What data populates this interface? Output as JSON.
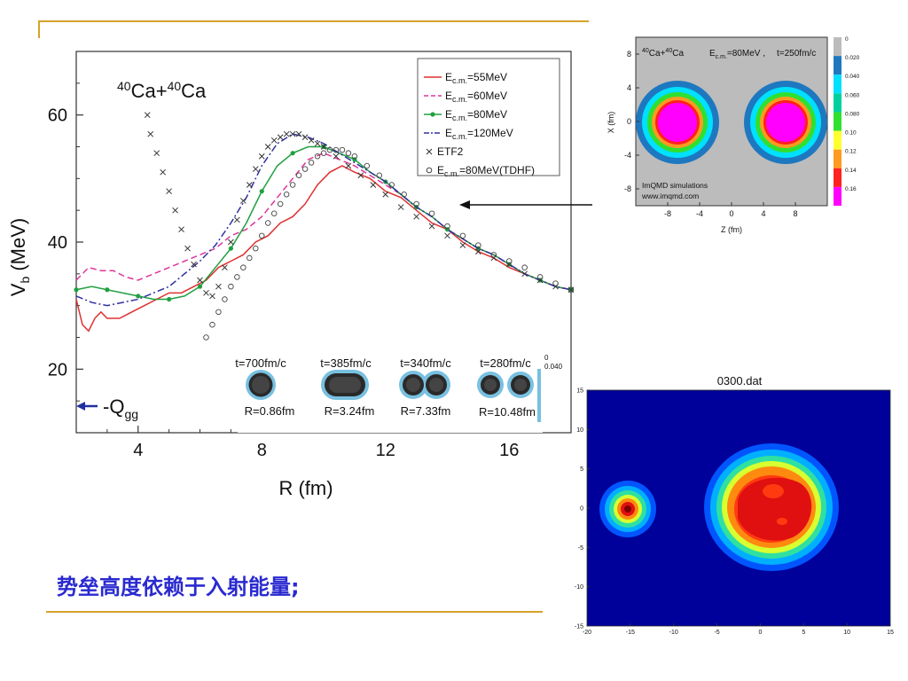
{
  "caption": "势垒高度依赖于入射能量;",
  "colors": {
    "rule": "#d6a22a",
    "caption": "#2a2ad0"
  },
  "chart_data": [
    {
      "type": "line",
      "title": "40Ca+40Ca",
      "title_parts": {
        "a_mass": "40",
        "a_sym": "Ca+",
        "b_mass": "40",
        "b_sym": "Ca"
      },
      "xlabel": "R (fm)",
      "ylabel": "V (MeV)",
      "ylabel_parts": {
        "main": "V",
        "sub": "b",
        "unit": " (MeV)"
      },
      "xlim": [
        2,
        18
      ],
      "ylim": [
        10,
        70
      ],
      "xticks": [
        4,
        8,
        12,
        16
      ],
      "yticks": [
        20,
        40,
        60
      ],
      "legend_position": "top-right",
      "series": [
        {
          "name": "Ec.m.=55MeV",
          "legend": {
            "main": "E",
            "sub": "c.m.",
            "rest": "=55MeV"
          },
          "color": "#e03030",
          "style": "solid",
          "x": [
            2.0,
            2.2,
            2.4,
            2.6,
            2.8,
            3.0,
            3.4,
            3.8,
            4.2,
            4.6,
            5.0,
            5.4,
            5.8,
            6.2,
            6.6,
            7.0,
            7.4,
            7.8,
            8.2,
            8.6,
            9.0,
            9.4,
            9.8,
            10.2,
            10.6,
            11.0,
            11.5,
            12.0,
            12.5,
            13.0,
            13.5,
            14.0,
            14.5,
            15.0,
            15.5,
            16.0,
            16.5,
            17.0,
            17.5,
            18.0
          ],
          "y": [
            31,
            27,
            26,
            28,
            29,
            28,
            28,
            29,
            30,
            31,
            32,
            32,
            33,
            34,
            36,
            37,
            38,
            40,
            41,
            43,
            44,
            46,
            49,
            51,
            52,
            51,
            50,
            48,
            47,
            45,
            43,
            42,
            40,
            38.5,
            37.5,
            36,
            35,
            34,
            33,
            32.5
          ]
        },
        {
          "name": "Ec.m.=60MeV",
          "legend": {
            "main": "E",
            "sub": "c.m.",
            "rest": "=60MeV"
          },
          "color": "#e0359a",
          "style": "dashed",
          "x": [
            2.0,
            2.4,
            2.8,
            3.2,
            3.6,
            4.0,
            4.5,
            5.0,
            5.5,
            6.0,
            6.5,
            7.0,
            7.5,
            8.0,
            8.5,
            9.0,
            9.5,
            10.0,
            10.5,
            11.0,
            11.5,
            12.0,
            12.5,
            13.0,
            13.5,
            14.0,
            14.5,
            15.0,
            15.5,
            16.0,
            16.5,
            17.0,
            17.5,
            18.0
          ],
          "y": [
            34,
            36,
            35.5,
            35.5,
            34.5,
            34,
            35,
            36,
            37,
            38,
            39,
            41,
            42,
            44,
            47,
            50,
            53,
            54,
            53,
            52,
            50.5,
            49,
            47.5,
            45.5,
            44,
            42,
            40.5,
            39,
            38,
            36.5,
            35,
            34,
            33,
            32.5
          ]
        },
        {
          "name": "Ec.m.=80MeV",
          "legend": {
            "main": "E",
            "sub": "c.m.",
            "rest": "=80MeV"
          },
          "color": "#20a040",
          "style": "solid-dots",
          "x": [
            2.0,
            2.5,
            3.0,
            3.5,
            4.0,
            4.5,
            5.0,
            5.5,
            6.0,
            6.5,
            7.0,
            7.5,
            8.0,
            8.5,
            9.0,
            9.5,
            10.0,
            10.5,
            11.0,
            11.5,
            12.0,
            12.5,
            13.0,
            13.5,
            14.0,
            14.5,
            15.0,
            15.5,
            16.0,
            16.5,
            17.0,
            17.5,
            18.0
          ],
          "y": [
            32.5,
            33,
            32.5,
            32,
            31.5,
            31,
            31,
            31.5,
            33,
            36,
            39,
            43,
            48,
            52,
            54,
            55,
            55,
            54,
            53,
            51,
            49.5,
            47.5,
            45.5,
            44,
            42,
            40.5,
            39,
            38,
            36.5,
            35,
            34,
            33,
            32.5
          ]
        },
        {
          "name": "Ec.m.=120MeV",
          "legend": {
            "main": "E",
            "sub": "c.m.",
            "rest": "=120MeV"
          },
          "color": "#3030a0",
          "style": "dashdot",
          "x": [
            2.0,
            2.5,
            3.0,
            3.5,
            4.0,
            4.5,
            5.0,
            5.5,
            6.0,
            6.5,
            7.0,
            7.5,
            8.0,
            8.5,
            9.0,
            9.5,
            10.0,
            10.5,
            11.0,
            11.5,
            12.0,
            12.5,
            13.0,
            13.5,
            14.0,
            14.5,
            15.0,
            15.5,
            16.0,
            16.5,
            17.0,
            17.5,
            18.0
          ],
          "y": [
            31.5,
            30.5,
            30,
            30.5,
            31,
            32,
            33,
            35,
            37,
            39.5,
            43,
            47,
            52,
            55.5,
            57,
            56.5,
            55.5,
            54,
            52.5,
            51,
            49.5,
            47.5,
            45.5,
            44,
            42,
            40.5,
            39,
            38,
            36.5,
            35,
            34,
            33,
            32.5
          ]
        },
        {
          "name": "ETF2",
          "legend": {
            "main": "ETF2",
            "sub": "",
            "rest": ""
          },
          "color": "#333333",
          "style": "x-markers",
          "x": [
            4.3,
            4.4,
            4.6,
            4.8,
            5.0,
            5.2,
            5.4,
            5.6,
            5.8,
            6.0,
            6.2,
            6.4,
            6.6,
            6.8,
            7.0,
            7.2,
            7.4,
            7.6,
            7.8,
            8.0,
            8.2,
            8.4,
            8.6,
            8.8,
            9.0,
            9.2,
            9.4,
            9.6,
            9.8,
            10.0,
            10.4,
            10.8,
            11.2,
            11.6,
            12.0,
            12.5,
            13.0,
            13.5,
            14.0,
            14.5,
            15.0,
            15.5,
            16.0,
            16.5,
            17.0,
            17.5,
            18.0
          ],
          "y": [
            60,
            57,
            54,
            51,
            48,
            45,
            42,
            39,
            36.5,
            34,
            32,
            31.5,
            33,
            36,
            40,
            43.5,
            46.5,
            49,
            51.5,
            53.5,
            55,
            56,
            56.5,
            57,
            57,
            57,
            56.5,
            56,
            55.5,
            55,
            53.5,
            52,
            50.5,
            49,
            47.5,
            45.5,
            44,
            42.5,
            41,
            39.5,
            38.5,
            37.5,
            36.5,
            35,
            34,
            33,
            32.5
          ]
        },
        {
          "name": "Ec.m.=80MeV(TDHF)",
          "legend": {
            "main": "E",
            "sub": "c.m.",
            "rest": "=80MeV(TDHF)"
          },
          "color": "#444444",
          "style": "o-markers",
          "x": [
            6.2,
            6.4,
            6.6,
            6.8,
            7.0,
            7.2,
            7.4,
            7.6,
            7.8,
            8.0,
            8.2,
            8.4,
            8.6,
            8.8,
            9.0,
            9.2,
            9.4,
            9.6,
            9.8,
            10.0,
            10.2,
            10.4,
            10.6,
            10.8,
            11.0,
            11.4,
            11.8,
            12.2,
            12.6,
            13.0,
            13.5,
            14.0,
            14.5,
            15.0,
            15.5,
            16.0,
            16.5,
            17.0,
            17.5,
            18.0
          ],
          "y": [
            25,
            27,
            29,
            31,
            33,
            34.5,
            36,
            37.5,
            39,
            41,
            43,
            44.5,
            46,
            47.5,
            49,
            50.5,
            51.5,
            52.5,
            53.5,
            54,
            54.5,
            54.5,
            54.5,
            54,
            53.5,
            52,
            50.5,
            49,
            47.5,
            46,
            44.5,
            42.5,
            41,
            39.5,
            38,
            37,
            36,
            34.5,
            33.5,
            32.5
          ]
        }
      ],
      "annotations": {
        "qgg_label": {
          "main": "-Q",
          "sub": "gg"
        },
        "qgg_value": 14.2,
        "snapshots": [
          {
            "time": "t=700fm/c",
            "radius": "R=0.86fm"
          },
          {
            "time": "t=385fm/c",
            "radius": "R=3.24fm"
          },
          {
            "time": "t=340fm/c",
            "radius": "R=7.33fm"
          },
          {
            "time": "t=280fm/c",
            "radius": "R=10.48fm"
          }
        ],
        "snapshot_scale": [
          "0",
          "0.040"
        ]
      }
    },
    {
      "type": "heatmap",
      "title": "40Ca+40Ca",
      "title_parts": {
        "a_mass": "40",
        "a_sym": "Ca+",
        "b_mass": "40",
        "b_sym": "Ca"
      },
      "energy_label": {
        "main": "E",
        "sub": "c.m.",
        "rest": "=80MeV ,"
      },
      "time_label": "t=250fm/c",
      "credit_lines": [
        "ImQMD simulations",
        "www.imqmd.com"
      ],
      "xlabel": "Z (fm)",
      "ylabel": "X (fm)",
      "xlim": [
        -12,
        12
      ],
      "ylim": [
        -10,
        10
      ],
      "xticks": [
        -8,
        -4,
        0,
        4,
        8
      ],
      "yticks": [
        8,
        4,
        0,
        -4,
        -8
      ],
      "colorbar": {
        "levels": [
          "0",
          "0.020",
          "0.040",
          "0.060",
          "0.080",
          "0.10",
          "0.12",
          "0.14",
          "0.16"
        ],
        "colors": [
          "#bcbcbc",
          "#1e78c0",
          "#00e0ff",
          "#00d0a0",
          "#30e030",
          "#ffff30",
          "#ff9a20",
          "#ff2020",
          "#ff00ff"
        ]
      }
    },
    {
      "type": "heatmap",
      "title": "0300.dat",
      "xlim": [
        -20,
        15
      ],
      "ylim": [
        -15,
        15
      ],
      "xticks": [
        -20,
        -15,
        -10,
        -5,
        0,
        5,
        10,
        15
      ],
      "yticks": [
        15,
        10,
        5,
        0,
        -5,
        -10,
        -15
      ],
      "background_color": "#00009a"
    }
  ]
}
